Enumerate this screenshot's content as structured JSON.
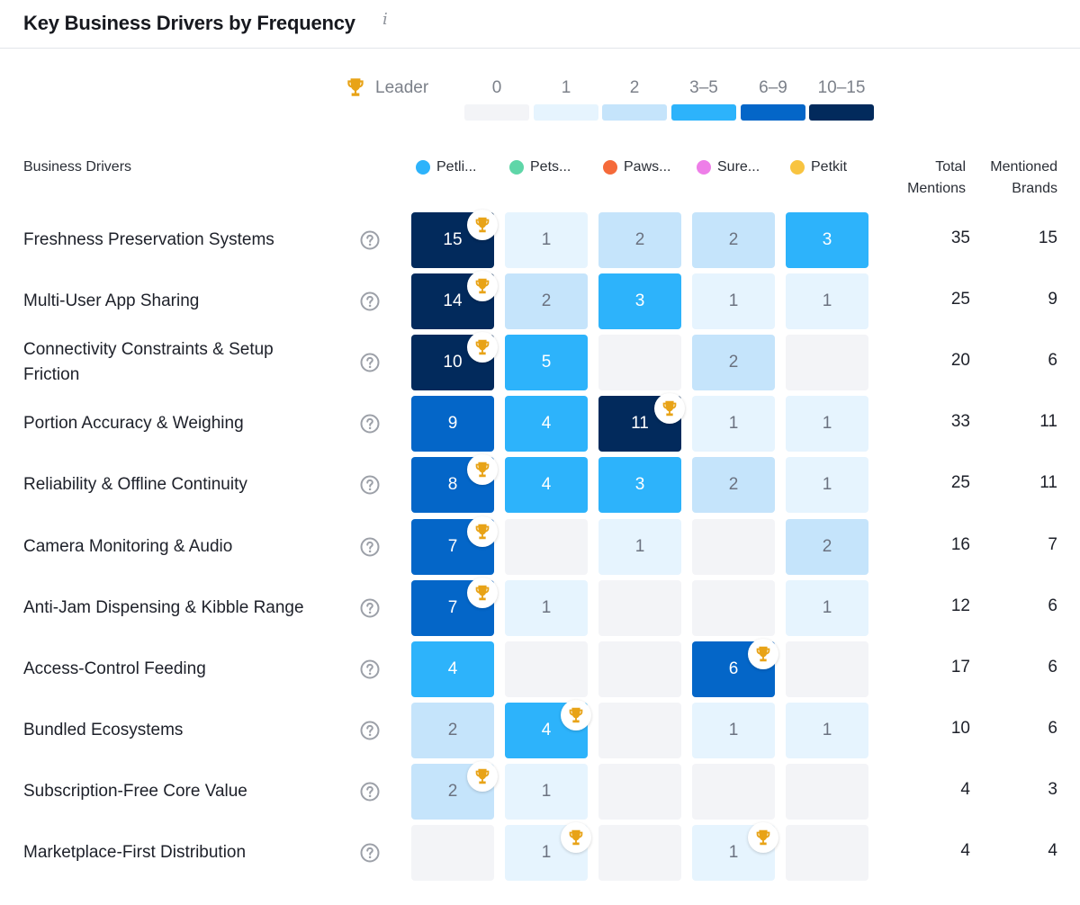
{
  "header": {
    "title": "Key Business Drivers by Frequency",
    "info_icon": "info-icon"
  },
  "legend": {
    "leader_label": "Leader",
    "leader_icon": "trophy-icon",
    "bins": [
      {
        "label": "0",
        "color": "#f3f4f7"
      },
      {
        "label": "1",
        "color": "#e6f4fe"
      },
      {
        "label": "2",
        "color": "#c5e4fb"
      },
      {
        "label": "3–5",
        "color": "#2db3fb"
      },
      {
        "label": "6–9",
        "color": "#0466c8"
      },
      {
        "label": "10–15",
        "color": "#022a5c"
      }
    ]
  },
  "columns": {
    "business_drivers": "Business Drivers",
    "total_mentions": "Total\nMentions",
    "mentioned_brands": "Mentioned\nBrands"
  },
  "brands": [
    {
      "name": "Petli...",
      "color": "#2db3fb"
    },
    {
      "name": "Pets...",
      "color": "#5fd6a8"
    },
    {
      "name": "Paws...",
      "color": "#f56a3a"
    },
    {
      "name": "Sure...",
      "color": "#ee7ee8"
    },
    {
      "name": "Petkit",
      "color": "#f8c440"
    }
  ],
  "chart_data": {
    "type": "heatmap",
    "title": "Key Business Drivers by Frequency",
    "x_categories": [
      "Petli...",
      "Pets...",
      "Paws...",
      "Sure...",
      "Petkit"
    ],
    "rows": [
      {
        "label": "Freshness Preservation Systems",
        "values": [
          15,
          1,
          2,
          2,
          3
        ],
        "leader": 0,
        "total_mentions": 35,
        "mentioned_brands": 15
      },
      {
        "label": "Multi-User App Sharing",
        "values": [
          14,
          2,
          3,
          1,
          1
        ],
        "leader": 0,
        "total_mentions": 25,
        "mentioned_brands": 9
      },
      {
        "label": "Connectivity Constraints & Setup Friction",
        "values": [
          10,
          5,
          0,
          2,
          0
        ],
        "leader": 0,
        "total_mentions": 20,
        "mentioned_brands": 6
      },
      {
        "label": "Portion Accuracy & Weighing",
        "values": [
          9,
          4,
          11,
          1,
          1
        ],
        "leader": 2,
        "total_mentions": 33,
        "mentioned_brands": 11
      },
      {
        "label": "Reliability & Offline Continuity",
        "values": [
          8,
          4,
          3,
          2,
          1
        ],
        "leader": 0,
        "total_mentions": 25,
        "mentioned_brands": 11
      },
      {
        "label": "Camera Monitoring & Audio",
        "values": [
          7,
          0,
          1,
          0,
          2
        ],
        "leader": 0,
        "total_mentions": 16,
        "mentioned_brands": 7
      },
      {
        "label": "Anti-Jam Dispensing & Kibble Range",
        "values": [
          7,
          1,
          0,
          0,
          1
        ],
        "leader": 0,
        "total_mentions": 12,
        "mentioned_brands": 6
      },
      {
        "label": "Access-Control Feeding",
        "values": [
          4,
          0,
          0,
          6,
          0
        ],
        "leader": 3,
        "total_mentions": 17,
        "mentioned_brands": 6
      },
      {
        "label": "Bundled Ecosystems",
        "values": [
          2,
          4,
          0,
          1,
          1
        ],
        "leader": 1,
        "total_mentions": 10,
        "mentioned_brands": 6
      },
      {
        "label": "Subscription-Free Core Value",
        "values": [
          2,
          1,
          0,
          0,
          0
        ],
        "leader": 0,
        "total_mentions": 4,
        "mentioned_brands": 3
      },
      {
        "label": "Marketplace-First Distribution",
        "values": [
          0,
          1,
          0,
          1,
          0
        ],
        "leader": [
          1,
          3
        ],
        "total_mentions": 4,
        "mentioned_brands": 4
      }
    ]
  }
}
